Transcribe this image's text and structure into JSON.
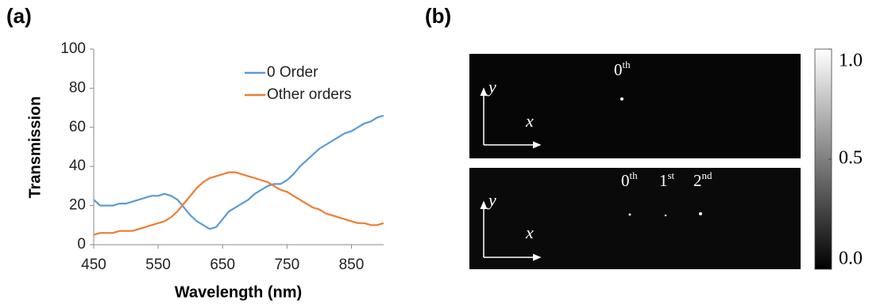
{
  "panel_labels": [
    "(a)",
    "(b)"
  ],
  "chart_data": {
    "type": "line",
    "xlabel": "Wavelength (nm)",
    "ylabel": "Transmission",
    "x": [
      450,
      460,
      470,
      480,
      490,
      500,
      510,
      520,
      530,
      540,
      550,
      560,
      570,
      580,
      590,
      600,
      610,
      620,
      630,
      640,
      650,
      660,
      670,
      680,
      690,
      700,
      710,
      720,
      730,
      740,
      750,
      760,
      770,
      780,
      790,
      800,
      810,
      820,
      830,
      840,
      850,
      860,
      870,
      880,
      890,
      900
    ],
    "series": [
      {
        "name": "0 Order",
        "color": "#5b9bd5",
        "values": [
          23,
          20,
          20,
          20,
          21,
          21,
          22,
          23,
          24,
          25,
          25,
          26,
          25,
          23,
          19,
          15,
          12,
          10,
          8,
          9,
          13,
          17,
          19,
          21,
          23,
          26,
          28,
          30,
          31,
          31,
          33,
          36,
          40,
          43,
          46,
          49,
          51,
          53,
          55,
          57,
          58,
          60,
          62,
          63,
          65,
          66
        ]
      },
      {
        "name": "Other orders",
        "color": "#ed7d31",
        "values": [
          5,
          6,
          6,
          6,
          7,
          7,
          7,
          8,
          9,
          10,
          11,
          12,
          14,
          17,
          21,
          25,
          29,
          32,
          34,
          35,
          36,
          37,
          37,
          36,
          35,
          34,
          33,
          32,
          30,
          28,
          27,
          25,
          23,
          21,
          19,
          18,
          16,
          15,
          14,
          13,
          12,
          11,
          11,
          10,
          10,
          11
        ]
      }
    ],
    "xlim": [
      450,
      900
    ],
    "xticks": [
      450,
      550,
      650,
      750,
      850
    ],
    "ylim": [
      0,
      100
    ],
    "yticks": [
      0,
      20,
      40,
      60,
      80,
      100
    ],
    "grid": false,
    "legend": "top-right"
  },
  "image_panel": {
    "top_labels": [
      {
        "base": "0",
        "sup": "th"
      }
    ],
    "bottom_labels": [
      {
        "base": "0",
        "sup": "th"
      },
      {
        "base": "1",
        "sup": "st"
      },
      {
        "base": "2",
        "sup": "nd"
      }
    ],
    "axis_x": "x",
    "axis_y": "y",
    "colorbar": {
      "ylim": [
        0,
        1
      ],
      "yticks": [
        {
          "value": 0,
          "label": "0.0"
        },
        {
          "value": 0.5,
          "label": "0.5"
        },
        {
          "value": 1,
          "label": "1.0"
        }
      ]
    }
  }
}
